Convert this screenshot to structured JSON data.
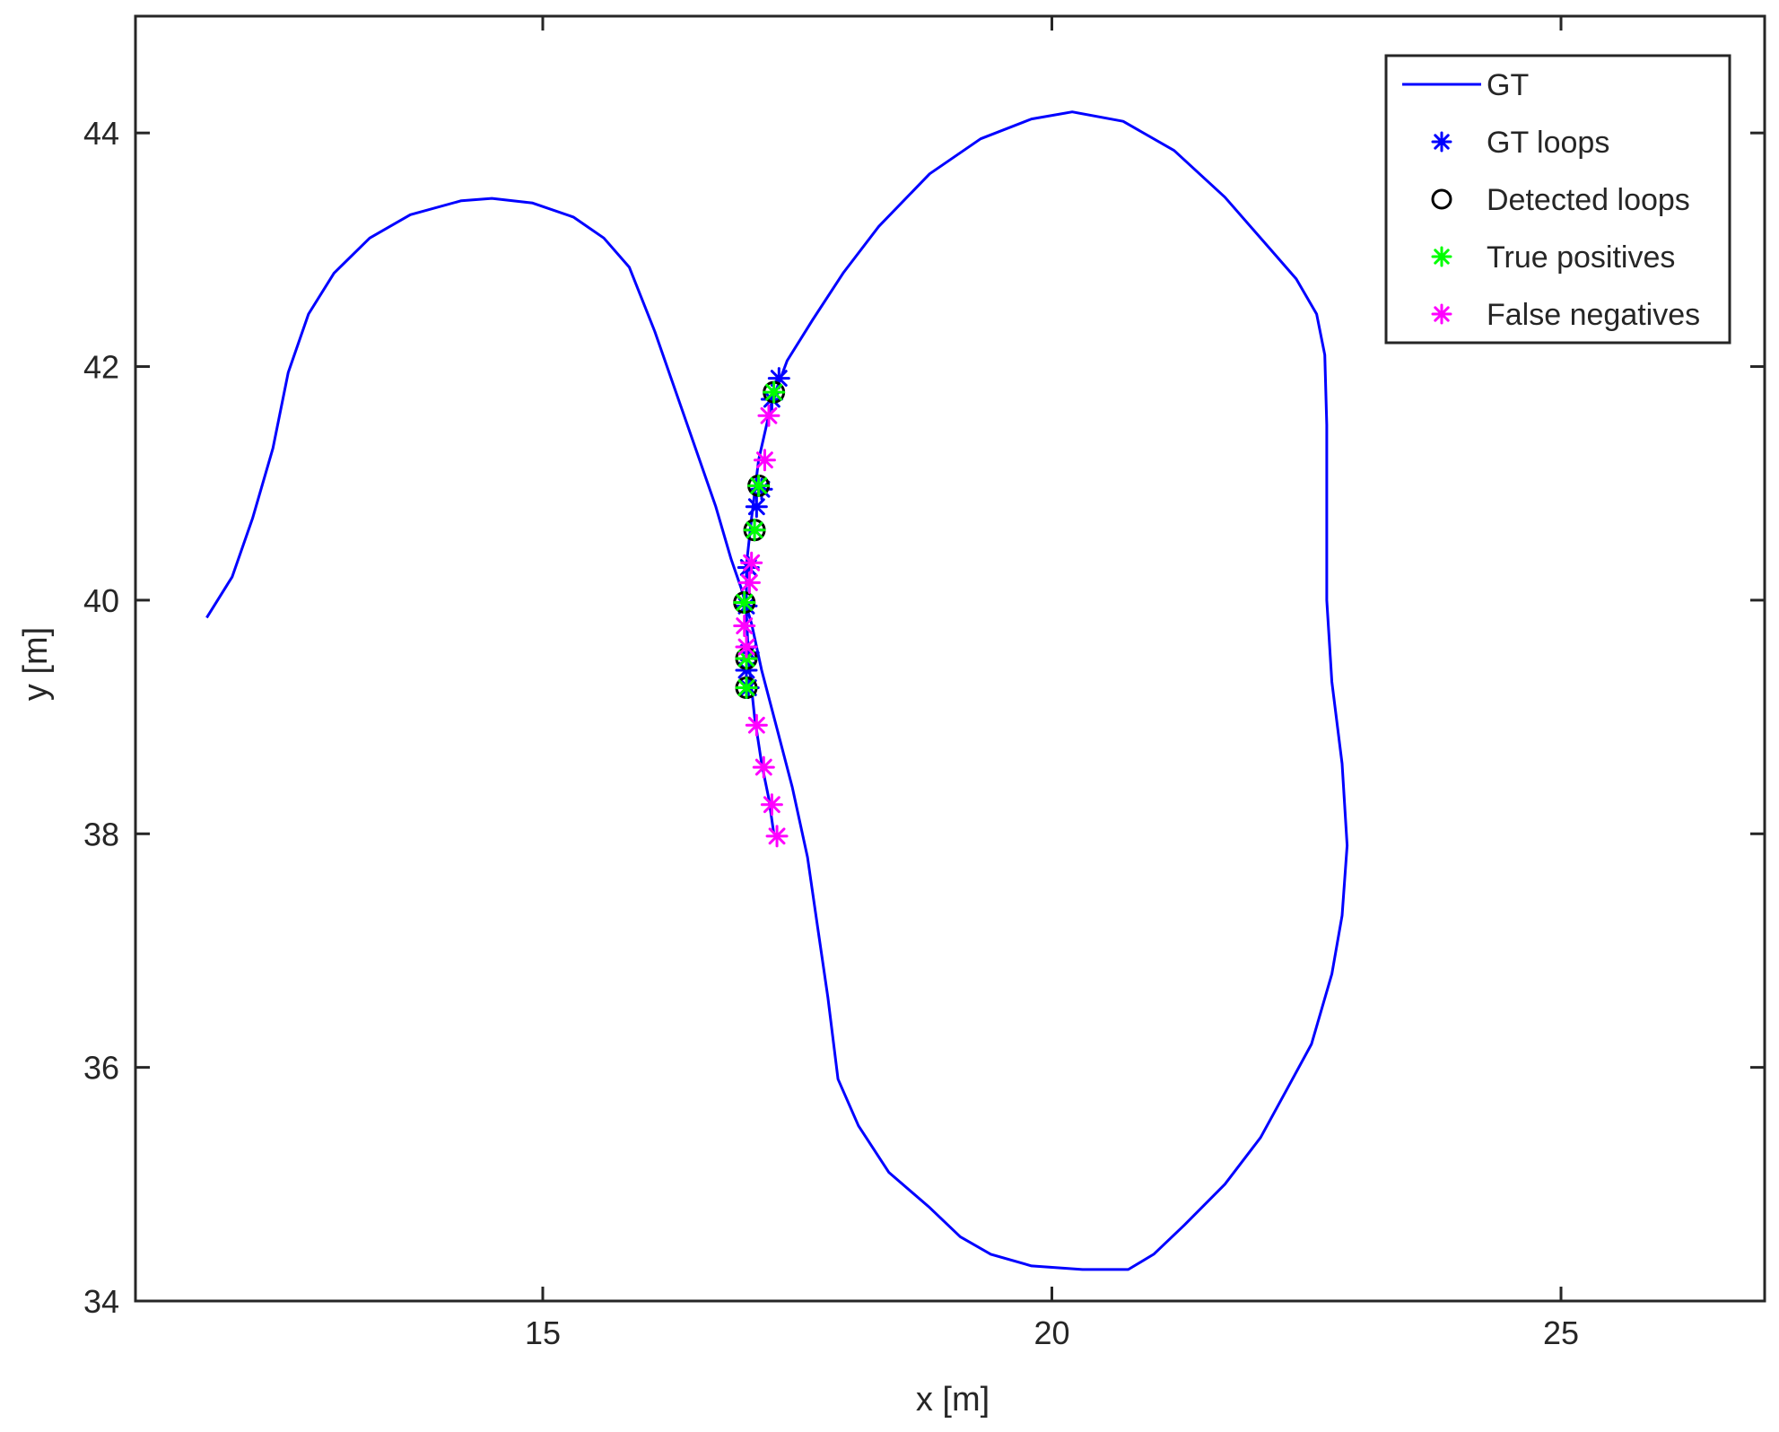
{
  "chart_data": {
    "type": "line",
    "title": "",
    "xlabel": "x [m]",
    "ylabel": "y [m]",
    "xlim": [
      11,
      27
    ],
    "ylim": [
      34,
      45
    ],
    "xticks": [
      15,
      20,
      25
    ],
    "yticks": [
      34,
      36,
      38,
      40,
      42,
      44
    ],
    "xtick_labels": [
      "15",
      "20",
      "25"
    ],
    "ytick_labels": [
      "34",
      "36",
      "38",
      "40",
      "42",
      "44"
    ],
    "grid": false,
    "legend_position": "top-right",
    "series": [
      {
        "name": "GT",
        "kind": "line",
        "color": "#0000ff",
        "points": [
          [
            11.7,
            39.85
          ],
          [
            11.95,
            40.2
          ],
          [
            12.15,
            40.7
          ],
          [
            12.35,
            41.3
          ],
          [
            12.5,
            41.95
          ],
          [
            12.7,
            42.45
          ],
          [
            12.95,
            42.8
          ],
          [
            13.3,
            43.1
          ],
          [
            13.7,
            43.3
          ],
          [
            14.2,
            43.42
          ],
          [
            14.5,
            43.44
          ],
          [
            14.9,
            43.4
          ],
          [
            15.3,
            43.28
          ],
          [
            15.6,
            43.1
          ],
          [
            15.85,
            42.85
          ],
          [
            16.1,
            42.3
          ],
          [
            16.3,
            41.8
          ],
          [
            16.5,
            41.3
          ],
          [
            16.7,
            40.8
          ],
          [
            16.85,
            40.35
          ],
          [
            16.95,
            40.1
          ],
          [
            17.05,
            39.8
          ],
          [
            17.15,
            39.4
          ],
          [
            17.3,
            38.9
          ],
          [
            17.45,
            38.4
          ],
          [
            17.6,
            37.8
          ],
          [
            17.7,
            37.2
          ],
          [
            17.8,
            36.6
          ],
          [
            17.9,
            35.9
          ],
          [
            18.1,
            35.5
          ],
          [
            18.4,
            35.1
          ],
          [
            18.8,
            34.8
          ],
          [
            19.1,
            34.55
          ],
          [
            19.4,
            34.4
          ],
          [
            19.8,
            34.3
          ],
          [
            20.3,
            34.27
          ],
          [
            20.75,
            34.27
          ],
          [
            21.0,
            34.4
          ],
          [
            21.3,
            34.65
          ],
          [
            21.7,
            35.0
          ],
          [
            22.05,
            35.4
          ],
          [
            22.3,
            35.8
          ],
          [
            22.55,
            36.2
          ],
          [
            22.75,
            36.8
          ],
          [
            22.85,
            37.3
          ],
          [
            22.9,
            37.9
          ],
          [
            22.85,
            38.6
          ],
          [
            22.75,
            39.3
          ],
          [
            22.7,
            40.0
          ],
          [
            22.7,
            40.7
          ],
          [
            22.7,
            41.5
          ],
          [
            22.68,
            42.1
          ],
          [
            22.6,
            42.45
          ],
          [
            22.4,
            42.75
          ],
          [
            22.1,
            43.05
          ],
          [
            21.7,
            43.45
          ],
          [
            21.2,
            43.85
          ],
          [
            20.7,
            44.1
          ],
          [
            20.2,
            44.18
          ],
          [
            19.8,
            44.12
          ],
          [
            19.3,
            43.95
          ],
          [
            18.8,
            43.65
          ],
          [
            18.3,
            43.2
          ],
          [
            17.95,
            42.8
          ],
          [
            17.65,
            42.4
          ],
          [
            17.4,
            42.05
          ],
          [
            17.25,
            41.7
          ],
          [
            17.12,
            41.2
          ],
          [
            17.05,
            40.7
          ],
          [
            17.0,
            40.3
          ],
          [
            17.0,
            39.9
          ],
          [
            17.02,
            39.5
          ],
          [
            17.08,
            39.0
          ],
          [
            17.15,
            38.6
          ],
          [
            17.22,
            38.3
          ],
          [
            17.27,
            38.0
          ]
        ]
      },
      {
        "name": "GT loops",
        "kind": "marker",
        "marker": "asterisk",
        "color": "#0000ff",
        "points": [
          [
            17.32,
            41.9
          ],
          [
            17.25,
            41.72
          ],
          [
            17.15,
            40.95
          ],
          [
            17.1,
            40.8
          ],
          [
            17.08,
            40.6
          ],
          [
            17.02,
            40.28
          ],
          [
            17.0,
            39.95
          ],
          [
            17.02,
            39.55
          ],
          [
            17.0,
            39.4
          ],
          [
            17.02,
            39.25
          ]
        ]
      },
      {
        "name": "Detected loops",
        "kind": "marker",
        "marker": "circle",
        "color": "#000000",
        "points": [
          [
            17.27,
            41.78
          ],
          [
            17.12,
            40.98
          ],
          [
            17.08,
            40.6
          ],
          [
            16.98,
            39.98
          ],
          [
            17.0,
            39.5
          ],
          [
            17.0,
            39.25
          ]
        ]
      },
      {
        "name": "True positives",
        "kind": "marker",
        "marker": "asterisk",
        "color": "#00ff00",
        "points": [
          [
            17.27,
            41.78
          ],
          [
            17.12,
            40.98
          ],
          [
            17.08,
            40.6
          ],
          [
            16.98,
            39.98
          ],
          [
            17.0,
            39.5
          ],
          [
            17.0,
            39.25
          ]
        ]
      },
      {
        "name": "False negatives",
        "kind": "marker",
        "marker": "asterisk",
        "color": "#ff00ff",
        "points": [
          [
            17.22,
            41.58
          ],
          [
            17.18,
            41.2
          ],
          [
            17.05,
            40.32
          ],
          [
            17.03,
            40.15
          ],
          [
            16.98,
            39.78
          ],
          [
            17.0,
            39.6
          ],
          [
            17.1,
            38.93
          ],
          [
            17.17,
            38.57
          ],
          [
            17.25,
            38.25
          ],
          [
            17.3,
            37.98
          ]
        ]
      }
    ]
  }
}
